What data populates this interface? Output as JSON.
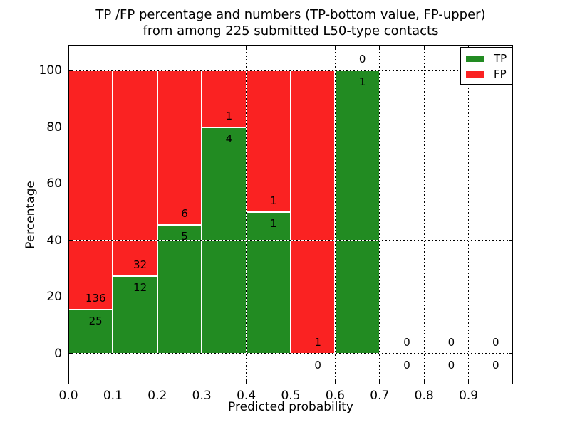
{
  "chart_data": {
    "type": "bar",
    "stacked": true,
    "orientation": "vertical",
    "title_lines": [
      "TP /FP percentage and numbers (TP-bottom value, FP-upper)",
      "from among 225 submitted L50-type contacts"
    ],
    "xlabel": "Predicted probability",
    "ylabel": "Percentage",
    "total_submitted_contacts": 225,
    "bin_width": 0.1,
    "categories": [
      "0.0-0.1",
      "0.1-0.2",
      "0.2-0.3",
      "0.3-0.4",
      "0.4-0.5",
      "0.5-0.6",
      "0.6-0.7",
      "0.7-0.8",
      "0.8-0.9",
      "0.9-1.0"
    ],
    "series": [
      {
        "name": "TP",
        "color": "#228b22",
        "values": [
          25,
          12,
          5,
          4,
          1,
          0,
          1,
          0,
          0,
          0
        ]
      },
      {
        "name": "FP",
        "color": "#fa2222",
        "values": [
          136,
          32,
          6,
          1,
          1,
          1,
          0,
          0,
          0,
          0
        ]
      }
    ],
    "bins": [
      {
        "range": [
          0.0,
          0.1
        ],
        "tp": 25,
        "fp": 136,
        "tp_pct": 15.53,
        "fp_pct": 84.47
      },
      {
        "range": [
          0.1,
          0.2
        ],
        "tp": 12,
        "fp": 32,
        "tp_pct": 27.27,
        "fp_pct": 72.73
      },
      {
        "range": [
          0.2,
          0.3
        ],
        "tp": 5,
        "fp": 6,
        "tp_pct": 45.45,
        "fp_pct": 54.55
      },
      {
        "range": [
          0.3,
          0.4
        ],
        "tp": 4,
        "fp": 1,
        "tp_pct": 80,
        "fp_pct": 20
      },
      {
        "range": [
          0.4,
          0.5
        ],
        "tp": 1,
        "fp": 1,
        "tp_pct": 50,
        "fp_pct": 50
      },
      {
        "range": [
          0.5,
          0.6
        ],
        "tp": 0,
        "fp": 1,
        "tp_pct": 0,
        "fp_pct": 100
      },
      {
        "range": [
          0.6,
          0.7
        ],
        "tp": 1,
        "fp": 0,
        "tp_pct": 100,
        "fp_pct": 0
      },
      {
        "range": [
          0.7,
          0.8
        ],
        "tp": 0,
        "fp": 0,
        "tp_pct": 0,
        "fp_pct": 0
      },
      {
        "range": [
          0.8,
          0.9
        ],
        "tp": 0,
        "fp": 0,
        "tp_pct": 0,
        "fp_pct": 0
      },
      {
        "range": [
          0.9,
          1.0
        ],
        "tp": 0,
        "fp": 0,
        "tp_pct": 0,
        "fp_pct": 0
      }
    ],
    "xticks": [
      "0.0",
      "0.1",
      "0.2",
      "0.3",
      "0.4",
      "0.5",
      "0.6",
      "0.7",
      "0.8",
      "0.9"
    ],
    "yticks": [
      0,
      20,
      40,
      60,
      80,
      100
    ],
    "xlim": [
      0,
      1
    ],
    "ylim": [
      -10.9,
      109.1
    ],
    "grid": true,
    "annotation_note": "TP-bottom value, FP-upper",
    "legend": {
      "position": "upper right",
      "items": [
        {
          "label": "TP",
          "color": "#228b22"
        },
        {
          "label": "FP",
          "color": "#fa2222"
        }
      ]
    }
  }
}
